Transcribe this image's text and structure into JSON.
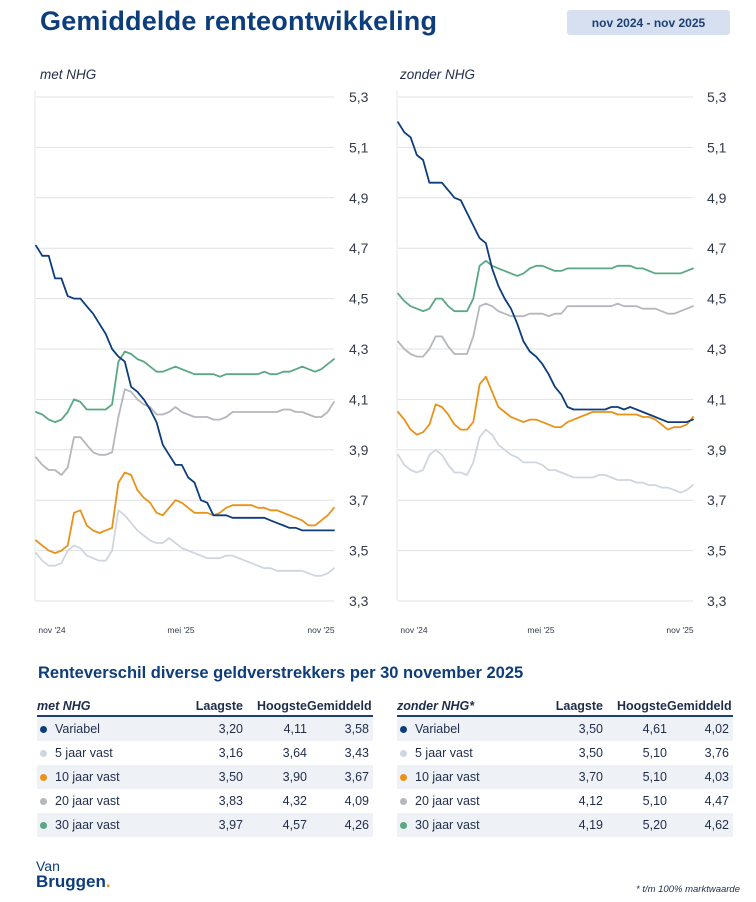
{
  "title": "Gemiddelde renteontwikkeling",
  "period": "nov 2024 - nov 2025",
  "colors": {
    "variabel": "#0d3d7a",
    "vast5": "#cfd6df",
    "vast10": "#e8921a",
    "vast20": "#b4b7bc",
    "vast30": "#5aa883"
  },
  "chart_data": [
    {
      "type": "line",
      "title": "met NHG",
      "ylim": [
        3.3,
        5.3
      ],
      "yticks": [
        "5,3",
        "5,1",
        "4,9",
        "4,7",
        "4,5",
        "4,3",
        "4,1",
        "3,9",
        "3,7",
        "3,5",
        "3,3"
      ],
      "xticks": [
        "nov '24",
        "mei '25",
        "nov '25"
      ],
      "grid": true,
      "series": [
        {
          "key": "variabel",
          "values": [
            4.71,
            4.67,
            4.67,
            4.58,
            4.58,
            4.51,
            4.5,
            4.5,
            4.47,
            4.44,
            4.4,
            4.36,
            4.3,
            4.27,
            4.25,
            4.15,
            4.13,
            4.1,
            4.06,
            4.01,
            3.92,
            3.88,
            3.84,
            3.84,
            3.79,
            3.77,
            3.7,
            3.69,
            3.64,
            3.64,
            3.64,
            3.63,
            3.63,
            3.63,
            3.63,
            3.63,
            3.63,
            3.62,
            3.61,
            3.6,
            3.59,
            3.59,
            3.58,
            3.58,
            3.58,
            3.58,
            3.58,
            3.58
          ]
        },
        {
          "key": "vast5",
          "values": [
            3.49,
            3.46,
            3.44,
            3.44,
            3.45,
            3.5,
            3.52,
            3.51,
            3.48,
            3.47,
            3.46,
            3.46,
            3.5,
            3.66,
            3.64,
            3.61,
            3.58,
            3.56,
            3.54,
            3.53,
            3.53,
            3.55,
            3.53,
            3.51,
            3.5,
            3.49,
            3.48,
            3.47,
            3.47,
            3.47,
            3.48,
            3.48,
            3.47,
            3.46,
            3.45,
            3.44,
            3.43,
            3.43,
            3.42,
            3.42,
            3.42,
            3.42,
            3.42,
            3.41,
            3.4,
            3.4,
            3.41,
            3.43
          ]
        },
        {
          "key": "vast10",
          "values": [
            3.54,
            3.52,
            3.5,
            3.49,
            3.5,
            3.52,
            3.65,
            3.66,
            3.6,
            3.58,
            3.57,
            3.58,
            3.59,
            3.77,
            3.81,
            3.8,
            3.74,
            3.71,
            3.69,
            3.65,
            3.64,
            3.67,
            3.7,
            3.69,
            3.67,
            3.65,
            3.65,
            3.65,
            3.64,
            3.65,
            3.67,
            3.68,
            3.68,
            3.68,
            3.68,
            3.67,
            3.67,
            3.66,
            3.66,
            3.65,
            3.64,
            3.63,
            3.62,
            3.6,
            3.6,
            3.62,
            3.64,
            3.67
          ]
        },
        {
          "key": "vast20",
          "values": [
            3.87,
            3.84,
            3.82,
            3.82,
            3.8,
            3.83,
            3.95,
            3.95,
            3.92,
            3.89,
            3.88,
            3.88,
            3.89,
            4.03,
            4.14,
            4.13,
            4.1,
            4.08,
            4.07,
            4.04,
            4.04,
            4.05,
            4.07,
            4.05,
            4.04,
            4.03,
            4.03,
            4.03,
            4.02,
            4.02,
            4.03,
            4.05,
            4.05,
            4.05,
            4.05,
            4.05,
            4.05,
            4.05,
            4.05,
            4.06,
            4.06,
            4.05,
            4.05,
            4.04,
            4.03,
            4.03,
            4.05,
            4.09
          ]
        },
        {
          "key": "vast30",
          "values": [
            4.05,
            4.04,
            4.02,
            4.01,
            4.02,
            4.05,
            4.1,
            4.09,
            4.06,
            4.06,
            4.06,
            4.06,
            4.08,
            4.25,
            4.29,
            4.28,
            4.26,
            4.25,
            4.23,
            4.21,
            4.21,
            4.22,
            4.23,
            4.22,
            4.21,
            4.2,
            4.2,
            4.2,
            4.2,
            4.19,
            4.2,
            4.2,
            4.2,
            4.2,
            4.2,
            4.2,
            4.21,
            4.2,
            4.2,
            4.21,
            4.21,
            4.22,
            4.23,
            4.22,
            4.21,
            4.22,
            4.24,
            4.26
          ]
        }
      ]
    },
    {
      "type": "line",
      "title": "zonder NHG",
      "ylim": [
        3.3,
        5.3
      ],
      "yticks": [
        "5,3",
        "5,1",
        "4,9",
        "4,7",
        "4,5",
        "4,3",
        "4,1",
        "3,9",
        "3,7",
        "3,5",
        "3,3"
      ],
      "xticks": [
        "nov '24",
        "mei '25",
        "nov '25"
      ],
      "grid": true,
      "series": [
        {
          "key": "variabel",
          "values": [
            5.2,
            5.16,
            5.14,
            5.07,
            5.05,
            4.96,
            4.96,
            4.96,
            4.93,
            4.9,
            4.89,
            4.84,
            4.79,
            4.74,
            4.72,
            4.62,
            4.55,
            4.5,
            4.46,
            4.4,
            4.33,
            4.29,
            4.27,
            4.24,
            4.2,
            4.15,
            4.12,
            4.07,
            4.06,
            4.06,
            4.06,
            4.06,
            4.06,
            4.06,
            4.07,
            4.07,
            4.06,
            4.07,
            4.06,
            4.05,
            4.04,
            4.03,
            4.02,
            4.01,
            4.01,
            4.01,
            4.01,
            4.02
          ]
        },
        {
          "key": "vast5",
          "values": [
            3.88,
            3.84,
            3.82,
            3.81,
            3.82,
            3.88,
            3.9,
            3.88,
            3.84,
            3.81,
            3.81,
            3.8,
            3.85,
            3.95,
            3.98,
            3.96,
            3.92,
            3.9,
            3.88,
            3.87,
            3.85,
            3.85,
            3.85,
            3.84,
            3.82,
            3.82,
            3.81,
            3.8,
            3.79,
            3.79,
            3.79,
            3.79,
            3.8,
            3.8,
            3.79,
            3.78,
            3.78,
            3.78,
            3.77,
            3.77,
            3.76,
            3.76,
            3.75,
            3.75,
            3.74,
            3.73,
            3.74,
            3.76
          ]
        },
        {
          "key": "vast10",
          "values": [
            4.05,
            4.02,
            3.98,
            3.96,
            3.97,
            4.0,
            4.08,
            4.07,
            4.04,
            4.0,
            3.98,
            3.98,
            4.01,
            4.16,
            4.19,
            4.13,
            4.07,
            4.05,
            4.03,
            4.02,
            4.01,
            4.02,
            4.02,
            4.01,
            4.0,
            3.99,
            3.99,
            4.01,
            4.02,
            4.03,
            4.04,
            4.05,
            4.05,
            4.05,
            4.05,
            4.04,
            4.04,
            4.04,
            4.04,
            4.03,
            4.03,
            4.02,
            4.0,
            3.98,
            3.99,
            3.99,
            4.0,
            4.03
          ]
        },
        {
          "key": "vast20",
          "values": [
            4.33,
            4.3,
            4.28,
            4.27,
            4.27,
            4.3,
            4.35,
            4.35,
            4.31,
            4.28,
            4.28,
            4.28,
            4.35,
            4.47,
            4.48,
            4.47,
            4.45,
            4.44,
            4.43,
            4.43,
            4.43,
            4.44,
            4.44,
            4.44,
            4.43,
            4.44,
            4.44,
            4.47,
            4.47,
            4.47,
            4.47,
            4.47,
            4.47,
            4.47,
            4.47,
            4.48,
            4.47,
            4.47,
            4.47,
            4.46,
            4.46,
            4.46,
            4.45,
            4.44,
            4.44,
            4.45,
            4.46,
            4.47
          ]
        },
        {
          "key": "vast30",
          "values": [
            4.52,
            4.49,
            4.47,
            4.46,
            4.45,
            4.46,
            4.5,
            4.5,
            4.47,
            4.45,
            4.45,
            4.45,
            4.5,
            4.63,
            4.65,
            4.63,
            4.62,
            4.61,
            4.6,
            4.59,
            4.6,
            4.62,
            4.63,
            4.63,
            4.62,
            4.61,
            4.61,
            4.62,
            4.62,
            4.62,
            4.62,
            4.62,
            4.62,
            4.62,
            4.62,
            4.63,
            4.63,
            4.63,
            4.62,
            4.62,
            4.61,
            4.6,
            4.6,
            4.6,
            4.6,
            4.6,
            4.61,
            4.62
          ]
        }
      ]
    }
  ],
  "section_title": "Renteverschil diverse geldverstrekkers per 30 november 2025",
  "tables": [
    {
      "title": "met NHG",
      "headers": [
        "Laagste",
        "Hoogste",
        "Gemiddeld"
      ],
      "rows": [
        {
          "key": "variabel",
          "name": "Variabel",
          "min": "3,20",
          "max": "4,11",
          "avg": "3,58"
        },
        {
          "key": "vast5",
          "name": "5 jaar vast",
          "min": "3,16",
          "max": "3,64",
          "avg": "3,43"
        },
        {
          "key": "vast10",
          "name": "10 jaar vast",
          "min": "3,50",
          "max": "3,90",
          "avg": "3,67"
        },
        {
          "key": "vast20",
          "name": "20 jaar vast",
          "min": "3,83",
          "max": "4,32",
          "avg": "4,09"
        },
        {
          "key": "vast30",
          "name": "30 jaar vast",
          "min": "3,97",
          "max": "4,57",
          "avg": "4,26"
        }
      ]
    },
    {
      "title": "zonder NHG*",
      "headers": [
        "Laagste",
        "Hoogste",
        "Gemiddeld"
      ],
      "rows": [
        {
          "key": "variabel",
          "name": "Variabel",
          "min": "3,50",
          "max": "4,61",
          "avg": "4,02"
        },
        {
          "key": "vast5",
          "name": "5 jaar vast",
          "min": "3,50",
          "max": "5,10",
          "avg": "3,76"
        },
        {
          "key": "vast10",
          "name": "10 jaar vast",
          "min": "3,70",
          "max": "5,10",
          "avg": "4,03"
        },
        {
          "key": "vast20",
          "name": "20 jaar vast",
          "min": "4,12",
          "max": "5,10",
          "avg": "4,47"
        },
        {
          "key": "vast30",
          "name": "30 jaar vast",
          "min": "4,19",
          "max": "5,20",
          "avg": "4,62"
        }
      ]
    }
  ],
  "logo": {
    "line1": "Van",
    "line2": "Bruggen",
    "dot": "."
  },
  "footnote": "* t/m 100% marktwaarde"
}
